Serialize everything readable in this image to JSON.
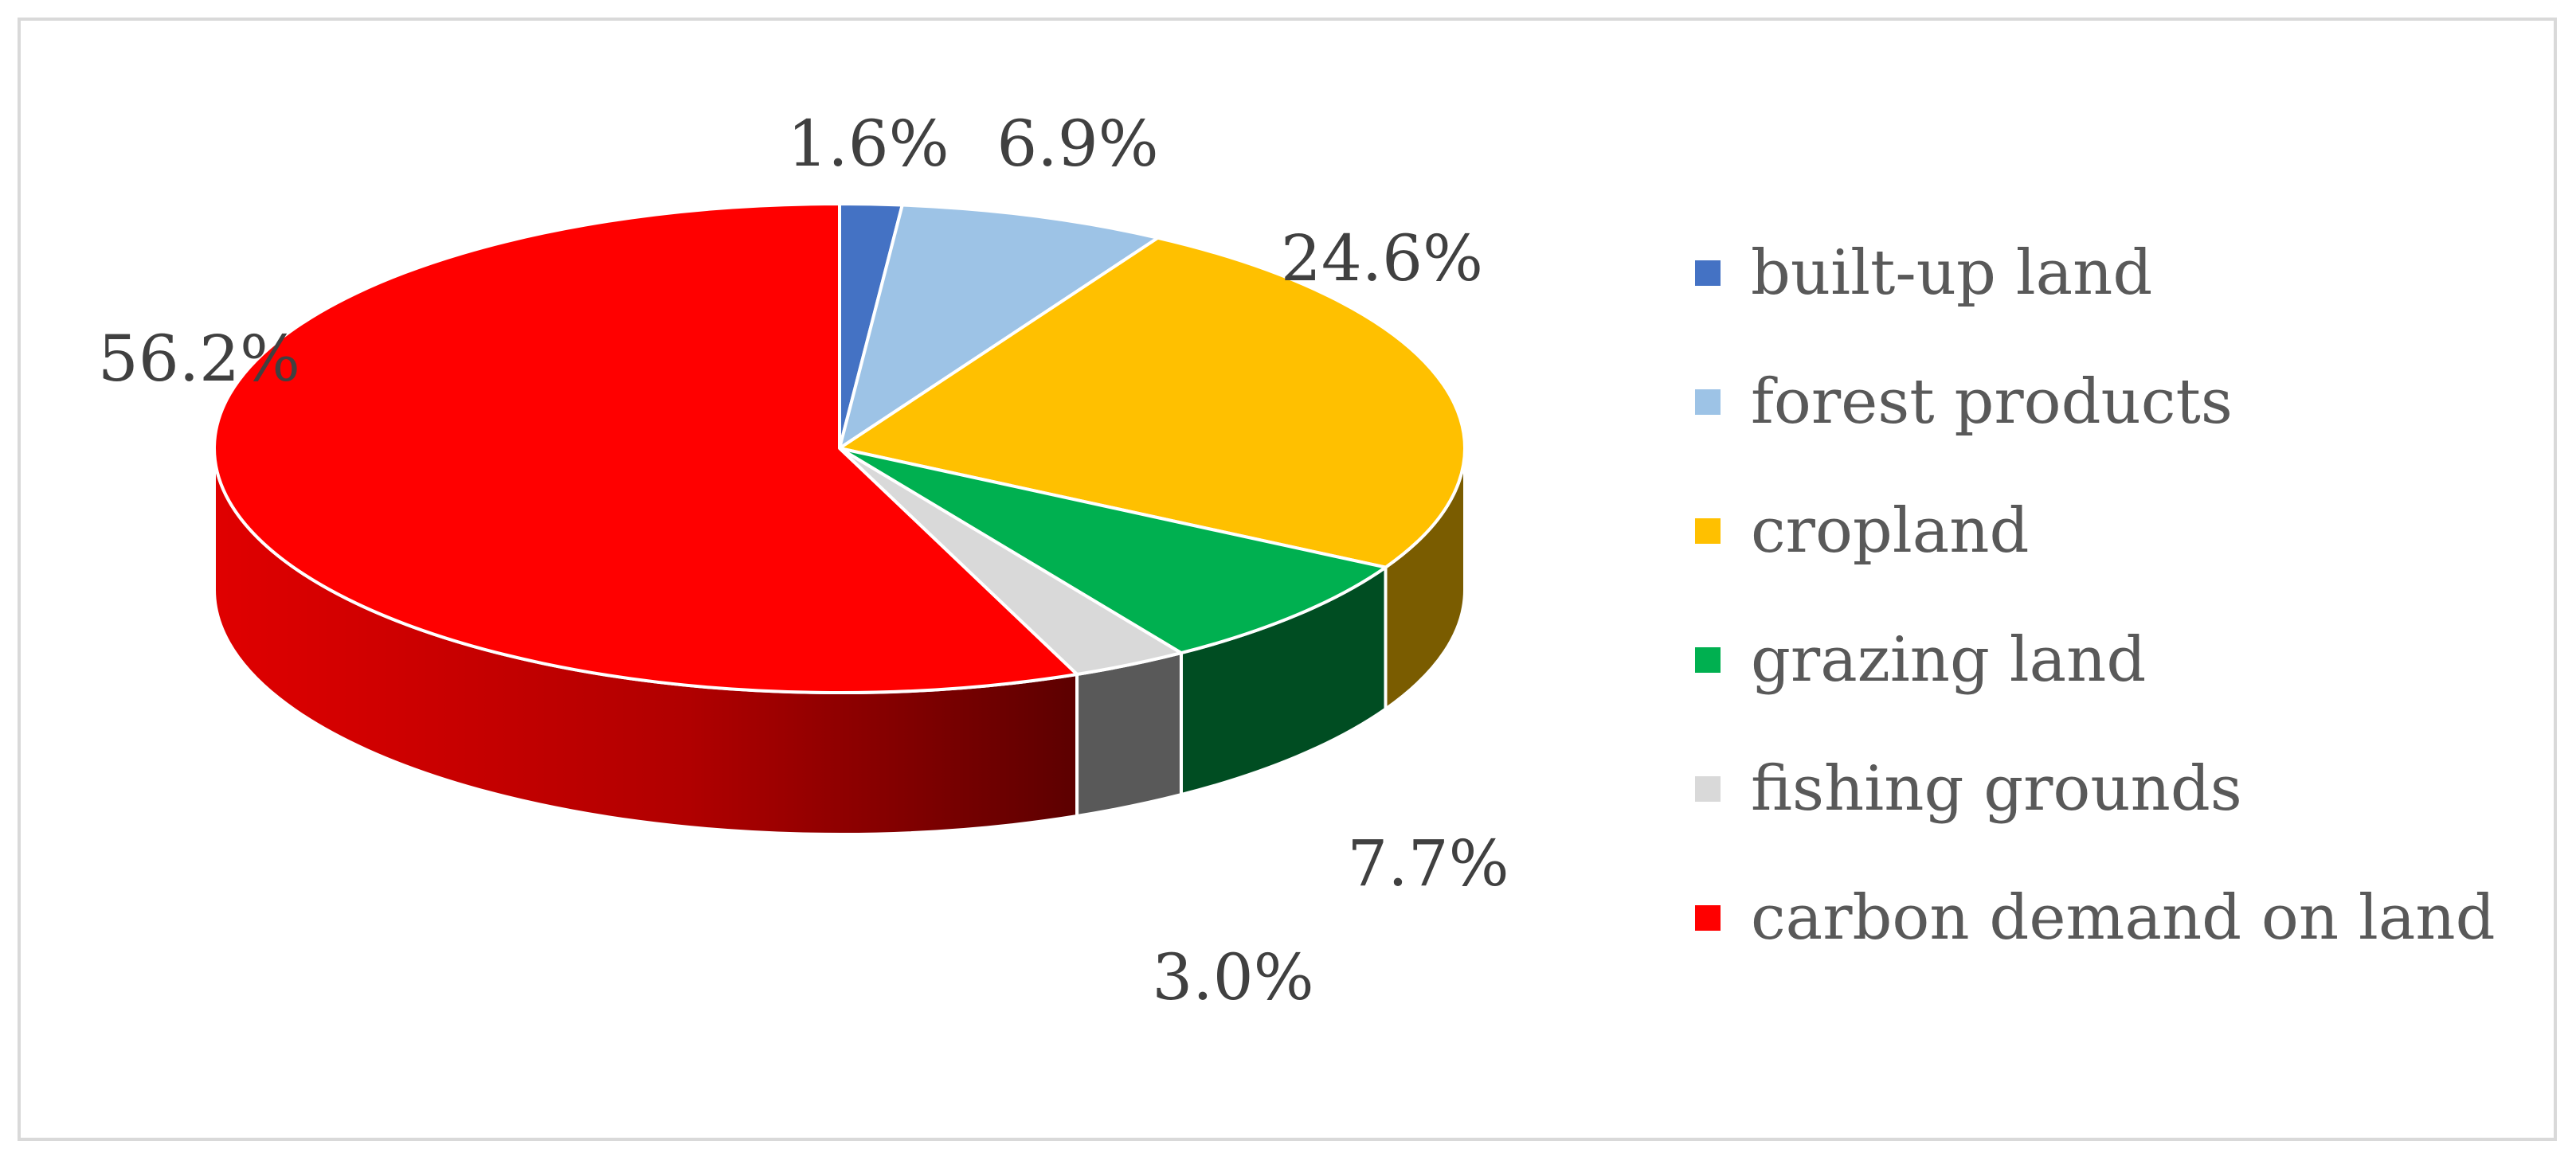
{
  "chart_data": {
    "type": "pie",
    "title": "",
    "categories": [
      "built-up land",
      "forest products",
      "cropland",
      "grazing land",
      "fishing grounds",
      "carbon demand on land"
    ],
    "values": [
      1.6,
      6.9,
      24.6,
      7.7,
      3.0,
      56.2
    ],
    "value_labels": [
      "1.6%",
      "6.9%",
      "24.6%",
      "7.7%",
      "3.0%",
      "56.2%"
    ],
    "colors": [
      "#4472c4",
      "#9dc3e6",
      "#ffc000",
      "#00b050",
      "#d9d9d9",
      "#ff0000"
    ],
    "side_colors": [
      "#1f3f7a",
      "#4a6f96",
      "#7a5c00",
      "#004d22",
      "#595959",
      "#8b0000"
    ],
    "style": "3d",
    "legend_position": "right"
  }
}
